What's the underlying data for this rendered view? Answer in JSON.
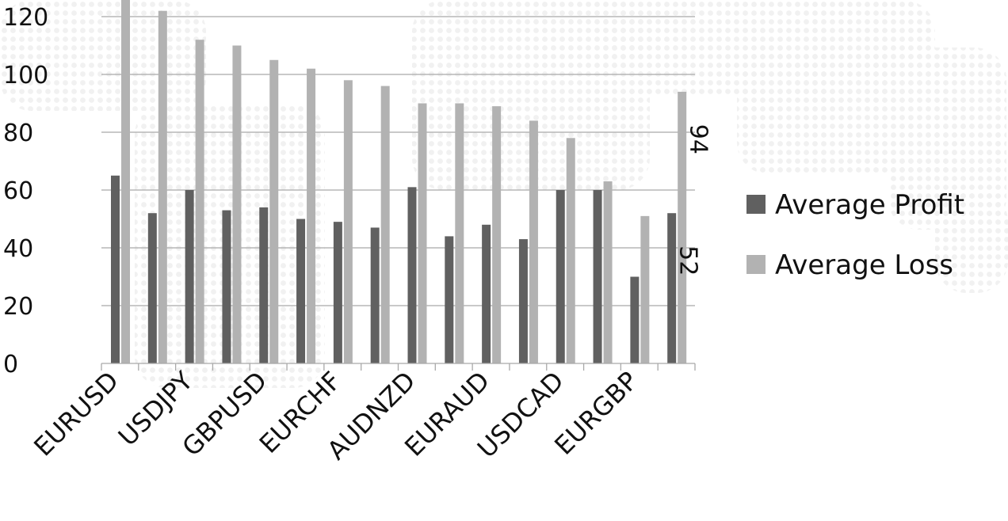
{
  "chart_data": {
    "type": "bar",
    "title": "",
    "xlabel": "",
    "ylabel": "",
    "ylim": [
      0,
      120
    ],
    "yticks": [
      0,
      20,
      40,
      60,
      80,
      100,
      120
    ],
    "grid": true,
    "legend_position": "right",
    "categories": [
      "EURUSD",
      "",
      "USDJPY",
      "",
      "GBPUSD",
      "",
      "EURCHF",
      "",
      "AUDNZD",
      "",
      "EURAUD",
      "",
      "USDCAD",
      "",
      "EURGBP",
      ""
    ],
    "series": [
      {
        "name": "Average Profit",
        "color": "#606060",
        "values": [
          65,
          52,
          60,
          53,
          54,
          50,
          49,
          47,
          61,
          44,
          48,
          43,
          60,
          60,
          30,
          52
        ]
      },
      {
        "name": "Average Loss",
        "color": "#b2b2b2",
        "values": [
          127,
          122,
          112,
          110,
          105,
          102,
          98,
          96,
          90,
          90,
          89,
          84,
          78,
          63,
          51,
          94
        ]
      }
    ],
    "data_labels": [
      {
        "series": 0,
        "index": 15,
        "text": "52"
      },
      {
        "series": 1,
        "index": 15,
        "text": "94"
      }
    ]
  }
}
